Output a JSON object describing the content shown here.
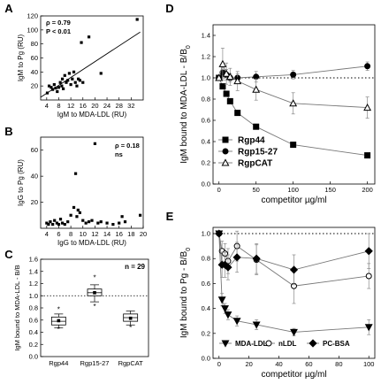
{
  "chart_data": [
    {
      "id": "A",
      "type": "scatter",
      "panel_label": "A",
      "xlabel": "IgM to MDA-LDL (RU)",
      "ylabel": "IgM to Pg (RU)",
      "xlim": [
        2,
        36
      ],
      "ylim": [
        0,
        120
      ],
      "xticks": [
        4,
        8,
        12,
        16,
        20,
        24,
        28,
        32
      ],
      "yticks": [
        20,
        40,
        60,
        80,
        100,
        120
      ],
      "annotations": [
        "ρ = 0.79",
        "P < 0.01"
      ],
      "fit_line": {
        "x": [
          2,
          35
        ],
        "y": [
          4,
          97
        ]
      },
      "points": {
        "x": [
          4.2,
          4.8,
          5.5,
          6.0,
          6.5,
          7.0,
          7.5,
          8.0,
          8.5,
          9.0,
          9.2,
          9.5,
          10.0,
          10.5,
          11.0,
          11.5,
          12.0,
          12.5,
          13.0,
          13.5,
          14.0,
          14.5,
          15.0,
          15.5,
          16.0,
          18.0,
          22.0,
          34.0
        ],
        "y": [
          10,
          20,
          18,
          15,
          22,
          17,
          12,
          18,
          25,
          20,
          30,
          16,
          35,
          25,
          28,
          38,
          22,
          30,
          40,
          25,
          20,
          30,
          28,
          82,
          25,
          90,
          38,
          115
        ]
      }
    },
    {
      "id": "B",
      "type": "scatter",
      "panel_label": "B",
      "xlabel": "IgG to MDA-LDL (RU)",
      "ylabel": "IgG to Pg (RU)",
      "xlim": [
        3,
        20
      ],
      "ylim": [
        0,
        70
      ],
      "xticks": [
        4,
        6,
        8,
        10,
        12,
        14,
        16,
        18,
        20
      ],
      "yticks": [
        20,
        40,
        60
      ],
      "annotations": [
        "ρ = 0.18",
        "ns"
      ],
      "points": {
        "x": [
          4.0,
          4.3,
          4.6,
          5.0,
          5.3,
          5.7,
          6.0,
          6.3,
          6.6,
          7.0,
          7.5,
          8.0,
          8.5,
          8.8,
          9.0,
          9.2,
          9.5,
          10.0,
          10.5,
          11.0,
          11.5,
          12.0,
          12.5,
          13.0,
          14.0,
          15.0,
          16.0,
          16.5,
          17.0,
          19.5
        ],
        "y": [
          4,
          3,
          5,
          3,
          6,
          4,
          3,
          7,
          4,
          3,
          5,
          10,
          16,
          42,
          9,
          14,
          12,
          6,
          4,
          5,
          6,
          65,
          4,
          5,
          4,
          3,
          4,
          9,
          5,
          10
        ]
      }
    },
    {
      "id": "C",
      "type": "box",
      "panel_label": "C",
      "ylabel": "IgM bound to MDA-LDL - B/B",
      "ylabel_sub": "0",
      "annotation": "n = 29",
      "ylim": [
        0.0,
        1.6
      ],
      "yticks": [
        0.0,
        0.2,
        0.4,
        0.6,
        0.8,
        1.0,
        1.2,
        1.4,
        1.6
      ],
      "reference_line": 1.0,
      "categories": [
        "Rgp44",
        "Rgp15-27",
        "RgpCAT"
      ],
      "boxes": [
        {
          "q1": 0.52,
          "median": 0.58,
          "q3": 0.65,
          "whislo": 0.47,
          "whishi": 0.7,
          "mean": 0.59,
          "outliers": [
            0.78,
            0.45
          ]
        },
        {
          "q1": 1.0,
          "median": 1.05,
          "q3": 1.11,
          "whislo": 0.9,
          "whishi": 1.18,
          "mean": 1.05,
          "outliers": [
            1.3,
            0.83
          ]
        },
        {
          "q1": 0.58,
          "median": 0.64,
          "q3": 0.7,
          "whislo": 0.52,
          "whishi": 0.75,
          "mean": 0.63,
          "outliers": [
            0.48
          ]
        }
      ]
    },
    {
      "id": "D",
      "type": "line",
      "panel_label": "D",
      "xlabel": "competitor µg/ml",
      "ylabel": "IgM bound to MDA-LDL - B/B",
      "ylabel_sub": "0",
      "xlim": [
        -8,
        210
      ],
      "ylim": [
        0.0,
        1.5
      ],
      "xticks": [
        0,
        50,
        100,
        150,
        200
      ],
      "yticks": [
        0.0,
        0.2,
        0.4,
        0.6,
        0.8,
        1.0,
        1.2,
        1.4
      ],
      "reference_line": 1.0,
      "series": [
        {
          "name": "Rgp44",
          "marker": "square-filled",
          "x": [
            0,
            5,
            10,
            15,
            25,
            50,
            100,
            200
          ],
          "y": [
            1.0,
            0.92,
            0.85,
            0.78,
            0.67,
            0.54,
            0.37,
            0.27
          ],
          "err": [
            0,
            0.02,
            0.02,
            0.02,
            0.02,
            0.02,
            0.02,
            0.02
          ]
        },
        {
          "name": "Rgp15-27",
          "marker": "circle-filled",
          "x": [
            0,
            5,
            10,
            15,
            25,
            50,
            100,
            200
          ],
          "y": [
            1.0,
            1.05,
            1.03,
            1.0,
            1.0,
            1.01,
            1.03,
            1.11
          ],
          "err": [
            0,
            0.05,
            0.05,
            0.04,
            0.04,
            0.05,
            0.04,
            0.04
          ]
        },
        {
          "name": "RgpCAT",
          "marker": "triangle-up-open",
          "x": [
            0,
            5,
            10,
            15,
            25,
            50,
            100,
            200
          ],
          "y": [
            1.0,
            1.13,
            1.04,
            1.01,
            0.97,
            0.89,
            0.76,
            0.72
          ],
          "err": [
            0,
            0.15,
            0.1,
            0.08,
            0.09,
            0.1,
            0.1,
            0.1
          ]
        }
      ]
    },
    {
      "id": "E",
      "type": "line",
      "panel_label": "E",
      "xlabel": "competitor µg/ml",
      "ylabel": "IgM bound to Pg - B/B",
      "ylabel_sub": "0",
      "xlim": [
        -4,
        104
      ],
      "ylim": [
        0.0,
        1.05
      ],
      "xticks": [
        0,
        20,
        40,
        60,
        80,
        100
      ],
      "yticks": [
        0.0,
        0.2,
        0.4,
        0.6,
        0.8,
        1.0
      ],
      "reference_line": 1.0,
      "series": [
        {
          "name": "MDA-LDL",
          "marker": "triangle-down-filled",
          "x": [
            0,
            2,
            4,
            6,
            12,
            25,
            50,
            100
          ],
          "y": [
            1.0,
            0.47,
            0.4,
            0.35,
            0.3,
            0.27,
            0.21,
            0.25
          ],
          "err": [
            0,
            0.05,
            0.04,
            0.04,
            0.04,
            0.04,
            0.03,
            0.06
          ]
        },
        {
          "name": "nLDL",
          "marker": "circle-open",
          "x": [
            0,
            2,
            4,
            6,
            12,
            25,
            50,
            100
          ],
          "y": [
            1.0,
            0.86,
            0.84,
            0.78,
            0.9,
            0.79,
            0.58,
            0.66
          ],
          "err": [
            0,
            0.08,
            0.08,
            0.1,
            0.12,
            0.12,
            0.14,
            0.1
          ]
        },
        {
          "name": "PC-BSA",
          "marker": "diamond-filled",
          "x": [
            0,
            2,
            4,
            6,
            12,
            25,
            50,
            100
          ],
          "y": [
            1.0,
            0.75,
            0.75,
            0.73,
            0.81,
            0.8,
            0.71,
            0.86
          ],
          "err": [
            0,
            0.1,
            0.1,
            0.1,
            0.12,
            0.12,
            0.12,
            0.14
          ]
        }
      ]
    }
  ]
}
